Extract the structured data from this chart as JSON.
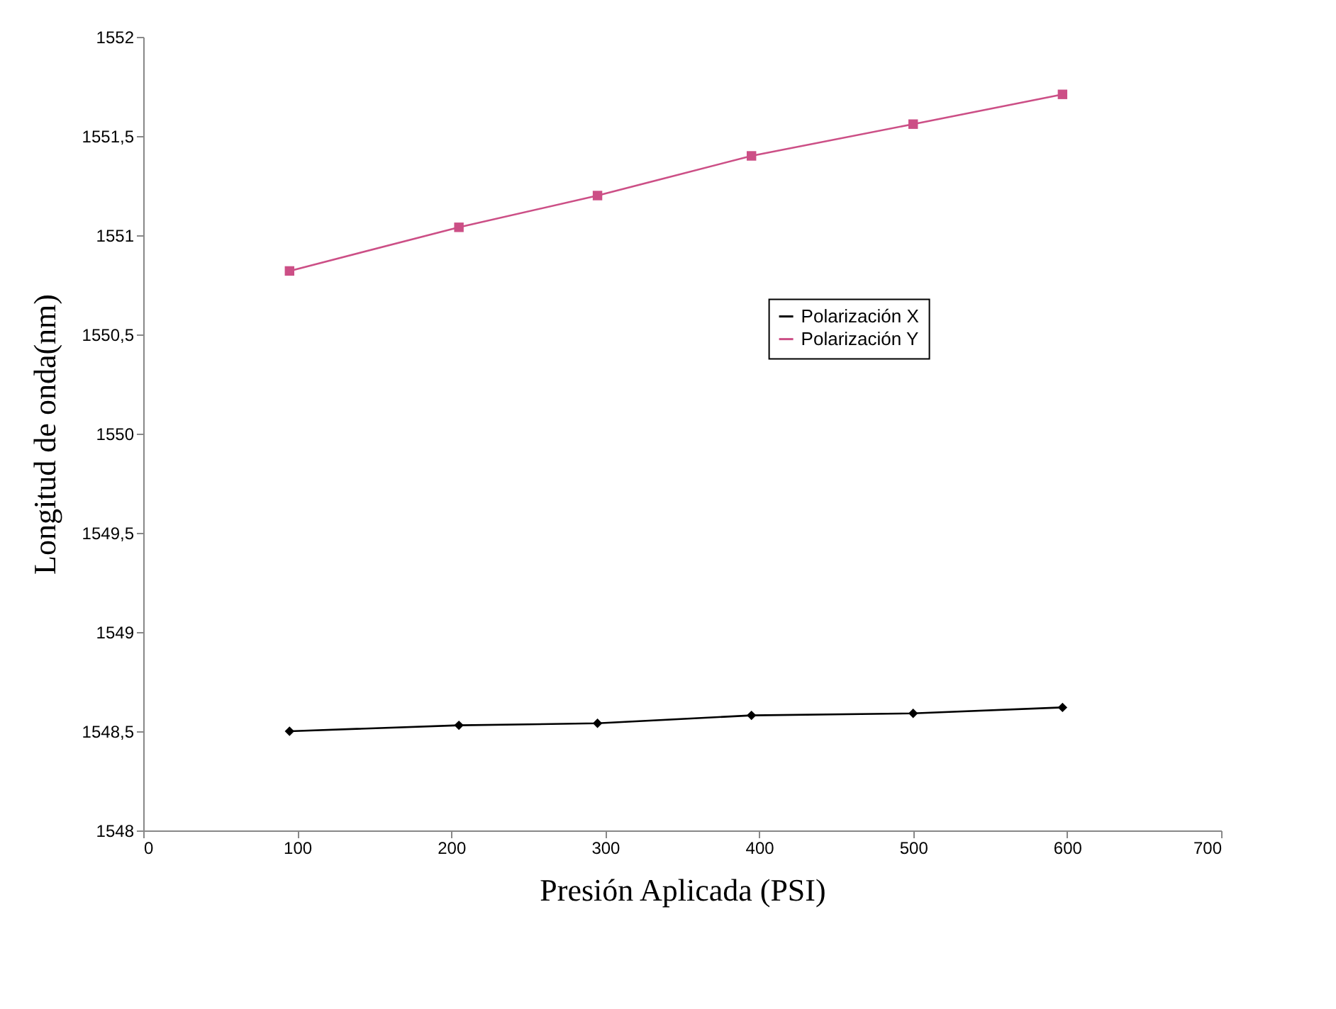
{
  "chart_data": {
    "type": "line",
    "xlabel": "Presión Aplicada (PSI)",
    "ylabel": "Longitud de onda(nm)",
    "xlim": [
      0,
      700
    ],
    "xticks": [
      0,
      100,
      200,
      300,
      400,
      500,
      600,
      700
    ],
    "ylim": [
      1548,
      1552
    ],
    "yticks": [
      1548,
      {
        "value": 1548.5,
        "label": "1548,5"
      },
      1549,
      {
        "value": 1549.5,
        "label": "1549,5"
      },
      1550,
      {
        "value": 1550.5,
        "label": "1550,5"
      },
      1551,
      {
        "value": 1551.5,
        "label": "1551,5"
      },
      1552
    ],
    "x": [
      95,
      205,
      295,
      395,
      500,
      597
    ],
    "series": [
      {
        "name": "Polarización X",
        "color": "#000000",
        "marker": "diamond",
        "values": [
          1548.5,
          1548.53,
          1548.54,
          1548.58,
          1548.59,
          1548.62
        ]
      },
      {
        "name": "Polarización Y",
        "color": "#cc4f86",
        "marker": "square",
        "values": [
          1550.82,
          1551.04,
          1551.2,
          1551.4,
          1551.56,
          1551.71
        ]
      }
    ],
    "grid": false,
    "legend": "right",
    "line_style": "solid"
  }
}
